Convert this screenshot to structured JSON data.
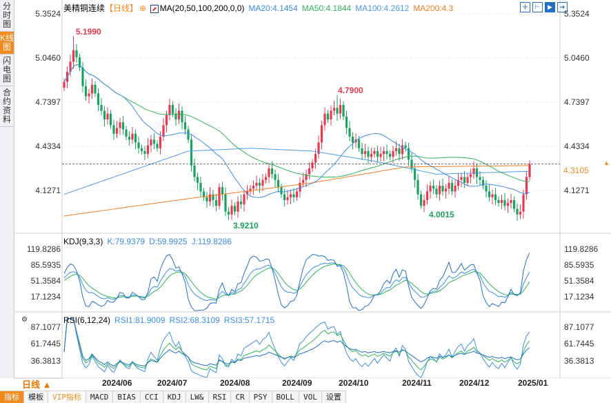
{
  "sidebar": {
    "tabs": [
      "分时图",
      "K线图",
      "闪电图",
      "合约资料"
    ],
    "active": 1
  },
  "header": {
    "symbol": "美精铜连续",
    "period": "【日线】",
    "ma_title": "MA(20,50,100,200,0,0)",
    "ma20": "MA20:4.1454",
    "ma50": "MA50:4.1844",
    "ma100": "MA100:4.2612",
    "ma200": "MA200:4.3"
  },
  "kdj": {
    "title": "KDJ(9,3,3)",
    "k": "K:79.9379",
    "d": "D:59.9925",
    "j": "J:119.8286"
  },
  "rsi": {
    "title": "RSI(6,12,24)",
    "r1": "RSI1:81.9009",
    "r2": "RSI2:68.3109",
    "r3": "RSI3:57.1715"
  },
  "price_axis": [
    "5.3524",
    "5.0460",
    "4.7397",
    "4.4334",
    "4.1271"
  ],
  "kdj_axis": [
    "119.8286",
    "85.5935",
    "51.3584",
    "17.1234"
  ],
  "rsi_axis": [
    "87.1077",
    "61.7445",
    "36.3813"
  ],
  "current_price": "4.3105",
  "annotations": {
    "high1": "5.1990",
    "low1": "3.9210",
    "high2": "4.7900",
    "low2": "4.0015"
  },
  "dates": [
    "2024/06",
    "2024/07",
    "2024/08",
    "2024/09",
    "2024/10",
    "2024/11",
    "2024/12",
    "2025/01"
  ],
  "period_selector": "日线 ▲",
  "bottom_tabs": [
    "指标",
    "模板",
    "VIP指标",
    "MACD",
    "BIAS",
    "CCI",
    "KDJ",
    "LW&",
    "RSI",
    "CR",
    "PSY",
    "BOLL",
    "VOL",
    "设置"
  ],
  "colors": {
    "up": "#e8384f",
    "down": "#1aa260",
    "ma20": "#3a8ee6",
    "ma50": "#2fb35a",
    "ma100": "#4a9be8",
    "ma200": "#f57c21",
    "accent": "#f28a1e"
  },
  "chart_data": {
    "type": "candlestick",
    "closes": [
      4.88,
      4.95,
      5.02,
      5.1,
      5.05,
      4.98,
      4.85,
      4.78,
      4.8,
      4.86,
      4.8,
      4.72,
      4.68,
      4.62,
      4.66,
      4.58,
      4.52,
      4.56,
      4.6,
      4.55,
      4.5,
      4.48,
      4.52,
      4.46,
      4.42,
      4.4,
      4.38,
      4.44,
      4.48,
      4.45,
      4.42,
      4.5,
      4.58,
      4.65,
      4.72,
      4.66,
      4.62,
      4.68,
      4.6,
      4.55,
      4.48,
      4.3,
      4.22,
      4.18,
      4.12,
      4.08,
      4.05,
      4.1,
      4.06,
      4.02,
      4.15,
      4.1,
      3.98,
      3.96,
      4.02,
      3.98,
      4.05,
      4.03,
      4.1,
      4.12,
      4.14,
      4.16,
      4.18,
      4.16,
      4.2,
      4.22,
      4.28,
      4.24,
      4.2,
      4.15,
      4.1,
      4.06,
      4.08,
      4.1,
      4.08,
      4.12,
      4.18,
      4.2,
      4.24,
      4.28,
      4.32,
      4.38,
      4.46,
      4.58,
      4.66,
      4.62,
      4.68,
      4.7,
      4.66,
      4.72,
      4.64,
      4.56,
      4.5,
      4.46,
      4.48,
      4.42,
      4.38,
      4.4,
      4.36,
      4.38,
      4.4,
      4.36,
      4.38,
      4.4,
      4.38,
      4.36,
      4.4,
      4.42,
      4.38,
      4.44,
      4.42,
      4.34,
      4.28,
      4.2,
      4.1,
      4.02,
      4.06,
      4.12,
      4.16,
      4.14,
      4.1,
      4.16,
      4.12,
      4.14,
      4.18,
      4.12,
      4.16,
      4.2,
      4.22,
      4.18,
      4.22,
      4.24,
      4.28,
      4.22,
      4.2,
      4.16,
      4.12,
      4.08,
      4.1,
      4.06,
      4.04,
      4.06,
      4.02,
      4.04,
      4.06,
      4.0,
      3.96,
      3.98,
      4.1,
      4.22,
      4.3105
    ],
    "extremes": [
      {
        "index": 3,
        "high": 5.199
      },
      {
        "index": 53,
        "low": 3.921
      },
      {
        "index": 88,
        "high": 4.79
      },
      {
        "index": 115,
        "low": 4.0015
      }
    ],
    "ma100_points": [
      [
        0,
        4.1
      ],
      [
        20,
        4.25
      ],
      [
        40,
        4.4
      ],
      [
        60,
        4.42
      ],
      [
        80,
        4.4
      ],
      [
        100,
        4.33
      ],
      [
        120,
        4.24
      ],
      [
        150,
        4.26
      ]
    ],
    "ma200_points": [
      [
        0,
        3.95
      ],
      [
        40,
        4.07
      ],
      [
        80,
        4.18
      ],
      [
        110,
        4.29
      ],
      [
        150,
        4.3
      ]
    ],
    "price_range": [
      3.85,
      5.3524
    ]
  }
}
